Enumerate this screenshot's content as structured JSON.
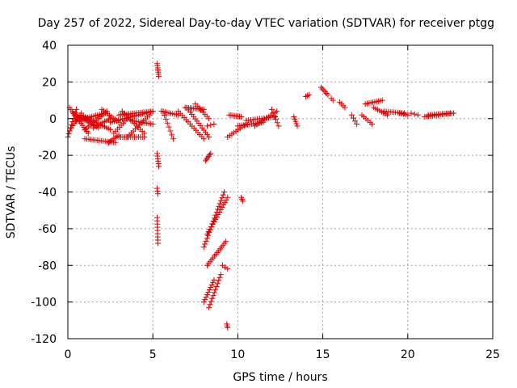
{
  "chart_data": {
    "type": "scatter",
    "title": "Day 257 of 2022, Sidereal Day-to-day VTEC variation (SDTVAR) for receiver ptgg",
    "xlabel": "GPS time / hours",
    "ylabel": "SDTVAR / TECUs",
    "xlim": [
      0,
      25
    ],
    "ylim": [
      -120,
      40
    ],
    "xticks": [
      0,
      5,
      10,
      15,
      20,
      25
    ],
    "yticks": [
      -120,
      -100,
      -80,
      -60,
      -40,
      -20,
      0,
      20,
      40
    ],
    "grid": true,
    "marker": "+",
    "marker_color": "#e00000",
    "segments": [
      {
        "x": [
          0.0,
          0.5
        ],
        "y": [
          -10,
          5
        ],
        "n": 10
      },
      {
        "x": [
          0.1,
          1.2
        ],
        "y": [
          6,
          -8
        ],
        "n": 14
      },
      {
        "x": [
          0.2,
          0.8
        ],
        "y": [
          -5,
          3
        ],
        "n": 8
      },
      {
        "x": [
          0.3,
          1.8
        ],
        "y": [
          3,
          -5
        ],
        "n": 16
      },
      {
        "x": [
          0.5,
          2.2
        ],
        "y": [
          -1,
          3
        ],
        "n": 16
      },
      {
        "x": [
          0.8,
          2.5
        ],
        "y": [
          2,
          -6
        ],
        "n": 16
      },
      {
        "x": [
          1.0,
          2.3
        ],
        "y": [
          -6,
          4
        ],
        "n": 14
      },
      {
        "x": [
          1.0,
          2.8
        ],
        "y": [
          -11,
          -13
        ],
        "n": 16
      },
      {
        "x": [
          1.5,
          2.5
        ],
        "y": [
          -5,
          0
        ],
        "n": 10
      },
      {
        "x": [
          2.0,
          3.0
        ],
        "y": [
          5,
          -2
        ],
        "n": 10
      },
      {
        "x": [
          2.4,
          3.0
        ],
        "y": [
          -13,
          -9
        ],
        "n": 7
      },
      {
        "x": [
          2.5,
          5.0
        ],
        "y": [
          -2,
          4
        ],
        "n": 22
      },
      {
        "x": [
          2.7,
          3.7
        ],
        "y": [
          -8,
          2
        ],
        "n": 10
      },
      {
        "x": [
          3.0,
          5.0
        ],
        "y": [
          2,
          4
        ],
        "n": 18
      },
      {
        "x": [
          3.0,
          4.5
        ],
        "y": [
          -10,
          -10
        ],
        "n": 14
      },
      {
        "x": [
          3.2,
          4.5
        ],
        "y": [
          4,
          -8
        ],
        "n": 12
      },
      {
        "x": [
          3.5,
          4.8
        ],
        "y": [
          -10,
          2
        ],
        "n": 12
      },
      {
        "x": [
          3.7,
          5.0
        ],
        "y": [
          -1,
          -3
        ],
        "n": 12
      },
      {
        "x": [
          5.25,
          5.35
        ],
        "y": [
          30,
          23
        ],
        "n": 7
      },
      {
        "x": [
          5.25,
          5.35
        ],
        "y": [
          -19,
          -26
        ],
        "n": 6
      },
      {
        "x": [
          5.25,
          5.3
        ],
        "y": [
          -38,
          -41
        ],
        "n": 3
      },
      {
        "x": [
          5.25,
          5.3
        ],
        "y": [
          -54,
          -68
        ],
        "n": 9
      },
      {
        "x": [
          5.6,
          6.2
        ],
        "y": [
          4,
          -11
        ],
        "n": 8
      },
      {
        "x": [
          5.5,
          6.5
        ],
        "y": [
          4,
          2
        ],
        "n": 10
      },
      {
        "x": [
          6.5,
          8.0
        ],
        "y": [
          4,
          -11
        ],
        "n": 14
      },
      {
        "x": [
          7.0,
          8.3
        ],
        "y": [
          6,
          -10
        ],
        "n": 14
      },
      {
        "x": [
          6.9,
          8.0
        ],
        "y": [
          6,
          5
        ],
        "n": 12
      },
      {
        "x": [
          7.5,
          8.3
        ],
        "y": [
          8,
          0
        ],
        "n": 8
      },
      {
        "x": [
          8.1,
          8.4
        ],
        "y": [
          -23,
          -19
        ],
        "n": 6
      },
      {
        "x": [
          8.2,
          8.6
        ],
        "y": [
          -4,
          -3
        ],
        "n": 3
      },
      {
        "x": [
          8.0,
          9.2
        ],
        "y": [
          -70,
          -40
        ],
        "n": 20
      },
      {
        "x": [
          8.2,
          9.4
        ],
        "y": [
          -63,
          -43
        ],
        "n": 16
      },
      {
        "x": [
          8.2,
          9.3
        ],
        "y": [
          -80,
          -67
        ],
        "n": 14
      },
      {
        "x": [
          8.0,
          8.6
        ],
        "y": [
          -100,
          -88
        ],
        "n": 10
      },
      {
        "x": [
          8.3,
          9.0
        ],
        "y": [
          -103,
          -85
        ],
        "n": 12
      },
      {
        "x": [
          9.1,
          9.4
        ],
        "y": [
          -80,
          -82
        ],
        "n": 3
      },
      {
        "x": [
          9.35,
          9.4
        ],
        "y": [
          -112,
          -114
        ],
        "n": 3
      },
      {
        "x": [
          9.5,
          10.2
        ],
        "y": [
          2,
          1
        ],
        "n": 8
      },
      {
        "x": [
          9.4,
          10.5
        ],
        "y": [
          -10,
          -3
        ],
        "n": 10
      },
      {
        "x": [
          10.0,
          11.5
        ],
        "y": [
          -4,
          -2
        ],
        "n": 14
      },
      {
        "x": [
          10.5,
          12.2
        ],
        "y": [
          -1,
          1
        ],
        "n": 14
      },
      {
        "x": [
          10.2,
          10.3
        ],
        "y": [
          -43,
          -45
        ],
        "n": 3
      },
      {
        "x": [
          11.0,
          12.3
        ],
        "y": [
          -4,
          4
        ],
        "n": 12
      },
      {
        "x": [
          12.0,
          12.4
        ],
        "y": [
          5,
          -4
        ],
        "n": 6
      },
      {
        "x": [
          13.3,
          13.5
        ],
        "y": [
          1,
          -4
        ],
        "n": 5
      },
      {
        "x": [
          14.0,
          14.2
        ],
        "y": [
          12,
          13
        ],
        "n": 3
      },
      {
        "x": [
          14.9,
          15.3
        ],
        "y": [
          17,
          13
        ],
        "n": 6
      },
      {
        "x": [
          15.5,
          15.6
        ],
        "y": [
          11,
          10
        ],
        "n": 2
      },
      {
        "x": [
          16.0,
          16.3
        ],
        "y": [
          9,
          6
        ],
        "n": 4
      },
      {
        "x": [
          16.7,
          17.0
        ],
        "y": [
          2,
          -3
        ],
        "n": 4
      },
      {
        "x": [
          17.3,
          17.9
        ],
        "y": [
          2,
          -3
        ],
        "n": 6
      },
      {
        "x": [
          17.5,
          18.5
        ],
        "y": [
          8,
          10
        ],
        "n": 10
      },
      {
        "x": [
          18.0,
          18.8
        ],
        "y": [
          6,
          2
        ],
        "n": 8
      },
      {
        "x": [
          18.6,
          19.8
        ],
        "y": [
          4,
          3
        ],
        "n": 10
      },
      {
        "x": [
          19.5,
          20.0
        ],
        "y": [
          3,
          2
        ],
        "n": 5
      },
      {
        "x": [
          20.2,
          20.6
        ],
        "y": [
          3,
          2
        ],
        "n": 3
      },
      {
        "x": [
          21.0,
          22.7
        ],
        "y": [
          1,
          3
        ],
        "n": 16
      },
      {
        "x": [
          21.2,
          22.5
        ],
        "y": [
          2,
          3
        ],
        "n": 12
      }
    ]
  }
}
